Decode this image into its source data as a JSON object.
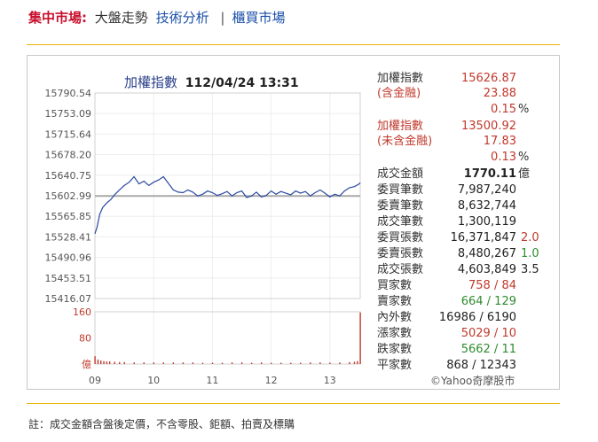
{
  "nav": {
    "market": "集中市場",
    "colon": ":",
    "current": "大盤走勢",
    "analysis_link": "技術分析",
    "separator": "|",
    "otc_link": "櫃買市場"
  },
  "chart_header": {
    "index_name": "加權指數",
    "datetime": "112/04/24 13:31"
  },
  "stats": {
    "weighted_index_label": "加權指數",
    "weighted_index_value": "15626.87",
    "incl_finance_label": "(含金融)",
    "incl_finance_change": "23.88",
    "incl_finance_pct": "0.15",
    "pct_unit": "%",
    "weighted_index2_label": "加權指數",
    "weighted_index2_value": "13500.92",
    "excl_finance_label": "(未含金融)",
    "excl_finance_change": "17.83",
    "excl_finance_pct": "0.13",
    "turnover_label": "成交金額",
    "turnover_value": "1770.11",
    "turnover_unit": "億",
    "bid_orders_label": "委買筆數",
    "bid_orders_value": "7,987,240",
    "ask_orders_label": "委賣筆數",
    "ask_orders_value": "8,632,744",
    "trade_count_label": "成交筆數",
    "trade_count_value": "1,300,119",
    "bid_volume_label": "委買張數",
    "bid_volume_value": "16,371,847",
    "bid_volume_ratio": "2.0",
    "ask_volume_label": "委賣張數",
    "ask_volume_value": "8,480,267",
    "ask_volume_ratio": "1.0",
    "trade_volume_label": "成交張數",
    "trade_volume_value": "4,603,849",
    "trade_volume_ratio": "3.5",
    "buyers_label": "買家數",
    "buyers_value": "758 / 84",
    "sellers_label": "賣家數",
    "sellers_value": "664 / 129",
    "inner_outer_label": "內外數",
    "inner_outer_value": "16986 / 6190",
    "up_label": "漲家數",
    "up_value": "5029 / 10",
    "down_label": "跌家數",
    "down_value": "5662 / 11",
    "flat_label": "平家數",
    "flat_value": "868 / 12343"
  },
  "credit": "©Yahoo奇摩股市",
  "footnote": "註：成交金額含盤後定價，不含零股、鉅額、拍賣及標購",
  "colors": {
    "accent_red": "#c8102e",
    "link_blue": "#1a4fa8",
    "price_line": "#2b4aa0",
    "reference_line": "#a9a9a9",
    "volume_bar": "#c0392b",
    "divider": "#e8b400",
    "up_green": "#2e8b2e"
  },
  "chart_data": [
    {
      "type": "line",
      "title": "加權指數 112/04/24 13:31",
      "x_ticks": [
        "09",
        "10",
        "11",
        "12",
        "13"
      ],
      "y_ticks": [
        "15790.54",
        "15753.09",
        "15715.64",
        "15678.20",
        "15640.75",
        "15602.99",
        "15565.85",
        "15528.41",
        "15490.96",
        "15453.51",
        "15416.07"
      ],
      "ylim": [
        15416.07,
        15790.54
      ],
      "reference_value": 15602.99,
      "x_minutes": [
        0,
        2,
        5,
        8,
        12,
        16,
        20,
        25,
        30,
        35,
        40,
        45,
        50,
        55,
        60,
        65,
        70,
        75,
        80,
        85,
        90,
        95,
        100,
        105,
        110,
        115,
        120,
        125,
        130,
        135,
        140,
        145,
        150,
        155,
        160,
        165,
        170,
        175,
        180,
        185,
        190,
        195,
        200,
        205,
        210,
        215,
        220,
        225,
        230,
        235,
        240,
        245,
        250,
        255,
        260,
        265,
        270,
        271
      ],
      "values": [
        15534,
        15545,
        15570,
        15582,
        15590,
        15596,
        15605,
        15614,
        15622,
        15628,
        15638,
        15625,
        15630,
        15622,
        15628,
        15632,
        15638,
        15626,
        15614,
        15610,
        15609,
        15614,
        15610,
        15603,
        15606,
        15612,
        15609,
        15604,
        15607,
        15611,
        15603,
        15609,
        15612,
        15600,
        15603,
        15610,
        15601,
        15604,
        15612,
        15606,
        15611,
        15608,
        15605,
        15612,
        15608,
        15611,
        15603,
        15609,
        15614,
        15608,
        15601,
        15606,
        15603,
        15612,
        15618,
        15620,
        15625,
        15627
      ]
    },
    {
      "type": "bar",
      "y_ticks": [
        "160",
        "80",
        "億"
      ],
      "ylim": [
        0,
        160
      ],
      "x_minutes": [
        0,
        3,
        6,
        9,
        12,
        15,
        20,
        25,
        30,
        40,
        50,
        60,
        70,
        80,
        90,
        100,
        110,
        120,
        130,
        140,
        150,
        160,
        170,
        180,
        190,
        200,
        210,
        220,
        230,
        240,
        250,
        260,
        265,
        268,
        271
      ],
      "values": [
        24,
        14,
        11,
        9,
        8,
        8,
        7,
        6,
        6,
        5,
        5,
        5,
        5,
        5,
        5,
        5,
        4,
        4,
        4,
        5,
        5,
        4,
        5,
        4,
        4,
        4,
        4,
        5,
        5,
        4,
        5,
        6,
        7,
        9,
        158
      ]
    }
  ]
}
